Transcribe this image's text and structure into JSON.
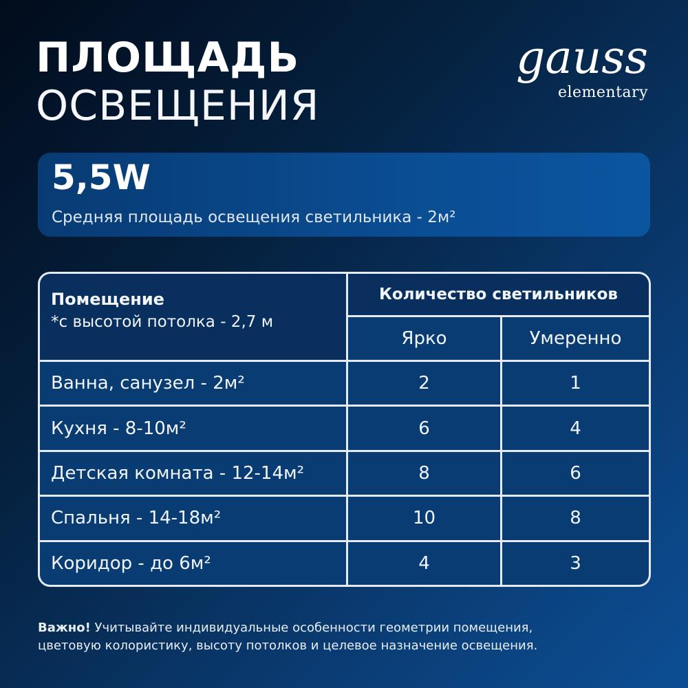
{
  "title": {
    "line1": "ПЛОЩАДЬ",
    "line2": "ОСВЕЩЕНИЯ"
  },
  "logo": {
    "brand": "gauss",
    "sub": "elementary"
  },
  "power": {
    "value": "5,5W",
    "description": "Средняя площадь освещения светильника - 2м²"
  },
  "table": {
    "room_header": "Помещение",
    "room_note": "*с высотой потолка - 2,7 м",
    "qty_header": "Количество светильников",
    "col_bright": "Ярко",
    "col_moderate": "Умеренно",
    "rows": [
      {
        "room": "Ванна, санузел - 2м²",
        "bright": "2",
        "moderate": "1"
      },
      {
        "room": "Кухня - 8-10м²",
        "bright": "6",
        "moderate": "4"
      },
      {
        "room": "Детская комната - 12-14м²",
        "bright": "8",
        "moderate": "6"
      },
      {
        "room": "Спальня - 14-18м²",
        "bright": "10",
        "moderate": "8"
      },
      {
        "room": "Коридор - до 6м²",
        "bright": "4",
        "moderate": "3"
      }
    ]
  },
  "note": {
    "bold": "Важно!",
    "text": " Учитывайте индивидуальные особенности геометрии помещения,",
    "line2": "цветовую колористику, высоту потолков и целевое назначение освещения."
  }
}
